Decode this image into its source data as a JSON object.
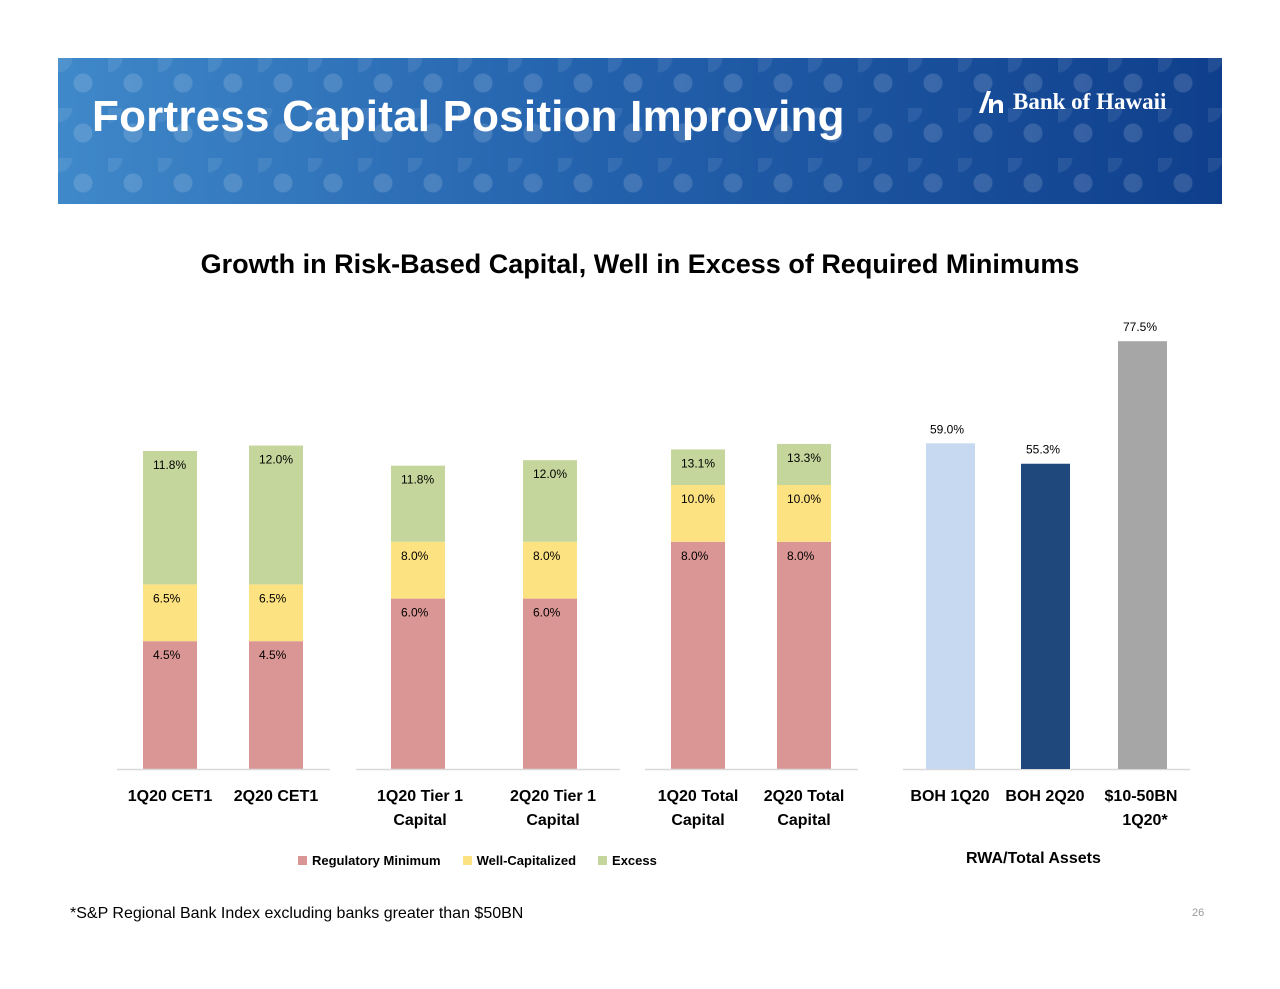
{
  "header": {
    "title": "Fortress Capital Position Improving",
    "brand": "Bank of Hawaii"
  },
  "colors": {
    "regulatory_minimum": "#d99694",
    "well_capitalized": "#fde282",
    "excess": "#c4d69b",
    "boh_1q20": "#c6d9f1",
    "boh_2q20": "#1f497d",
    "peer_index": "#a6a6a6"
  },
  "chart_data": [
    {
      "type": "bar",
      "title": "Growth in Risk-Based Capital, Well in Excess of Required Minimums",
      "stacked": true,
      "categories": [
        "1Q20 CET1",
        "2Q20 CET1",
        "1Q20 Tier 1 Capital",
        "2Q20 Tier 1 Capital",
        "1Q20 Total Capital",
        "2Q20 Total Capital"
      ],
      "series": [
        {
          "name": "Regulatory Minimum",
          "values": [
            4.5,
            4.5,
            6.0,
            6.0,
            8.0,
            8.0
          ]
        },
        {
          "name": "Well-Capitalized",
          "values": [
            6.5,
            6.5,
            8.0,
            8.0,
            10.0,
            10.0
          ]
        },
        {
          "name": "Excess",
          "values": [
            11.8,
            12.0,
            11.8,
            12.0,
            13.1,
            13.3
          ]
        }
      ],
      "data_labels": [
        [
          "4.5%",
          "6.5%",
          "11.8%"
        ],
        [
          "4.5%",
          "6.5%",
          "12.0%"
        ],
        [
          "6.0%",
          "8.0%",
          "11.8%"
        ],
        [
          "6.0%",
          "8.0%",
          "12.0%"
        ],
        [
          "8.0%",
          "10.0%",
          "13.1%"
        ],
        [
          "8.0%",
          "10.0%",
          "13.3%"
        ]
      ],
      "legend": [
        "Regulatory Minimum",
        "Well-Capitalized",
        "Excess"
      ],
      "legend_position": "bottom",
      "grid": false
    },
    {
      "type": "bar",
      "xlabel": "RWA/Total Assets",
      "categories": [
        "BOH 1Q20",
        "BOH 2Q20",
        "$10-50BN 1Q20*"
      ],
      "values": [
        59.0,
        55.3,
        77.5
      ],
      "data_labels": [
        "59.0%",
        "55.3%",
        "77.5%"
      ],
      "grid": false
    }
  ],
  "legend": {
    "items": [
      "Regulatory Minimum",
      "Well-Capitalized",
      "Excess"
    ]
  },
  "footnote": "*S&P Regional Bank Index excluding banks greater than $50BN",
  "page_number": "26"
}
